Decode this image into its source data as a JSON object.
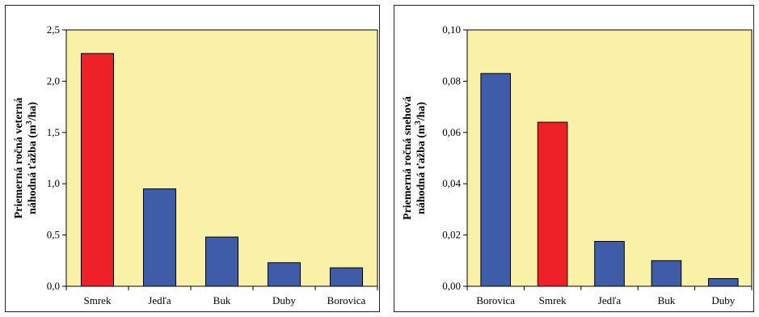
{
  "chart_data": [
    {
      "type": "bar",
      "categories": [
        "Smrek",
        "Jedľa",
        "Buk",
        "Duby",
        "Borovica"
      ],
      "values": [
        2.27,
        0.95,
        0.48,
        0.23,
        0.18
      ],
      "highlight_index": 0,
      "ylim": [
        0,
        2.5
      ],
      "yticks": [
        "0,0",
        "0,5",
        "1,0",
        "1,5",
        "2,0",
        "2,5"
      ],
      "ylabel_line1": "Priemerná ročná veterná",
      "ylabel_line2_prefix": "náhodná ťažba (m",
      "ylabel_sup": "3",
      "ylabel_line2_suffix": "/ha)",
      "grid": false,
      "plot_bg": "#FAF1A8",
      "bar_color": "#3F5CA9",
      "highlight_color": "#EE2028"
    },
    {
      "type": "bar",
      "categories": [
        "Borovica",
        "Smrek",
        "Jedľa",
        "Buk",
        "Duby"
      ],
      "values": [
        0.083,
        0.064,
        0.0175,
        0.01,
        0.003
      ],
      "highlight_index": 1,
      "ylim": [
        0,
        0.1
      ],
      "yticks": [
        "0,00",
        "0,02",
        "0,04",
        "0,06",
        "0,08",
        "0,10"
      ],
      "ylabel_line1": "Priemerná ročná snehová",
      "ylabel_line2_prefix": "náhodná ťažba (m",
      "ylabel_sup": "3",
      "ylabel_line2_suffix": "/ha)",
      "grid": false,
      "plot_bg": "#FAF1A8",
      "bar_color": "#3F5CA9",
      "highlight_color": "#EE2028"
    }
  ]
}
